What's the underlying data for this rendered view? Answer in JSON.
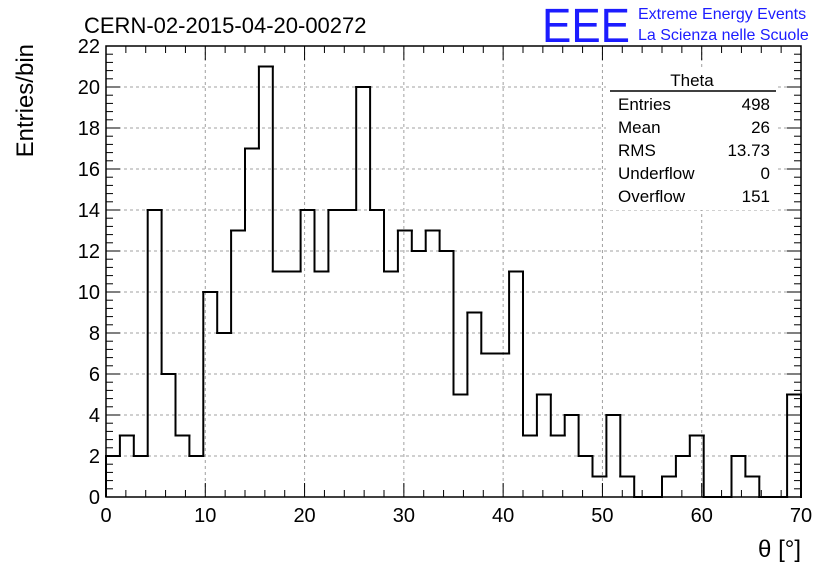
{
  "header": {
    "run_title": "CERN-02-2015-04-20-00272",
    "logo_letters": "EEE",
    "logo_line1": "Extreme Energy Events",
    "logo_line2": "La Scienza nelle Scuole"
  },
  "colors": {
    "logo": "#1c1cff",
    "histogram_line": "#000000",
    "grid": "#a0a0a0"
  },
  "stats_box": {
    "title": "Theta",
    "rows": [
      {
        "label": "Entries",
        "value": "498"
      },
      {
        "label": "Mean",
        "value": "26"
      },
      {
        "label": "RMS",
        "value": "13.73"
      },
      {
        "label": "Underflow",
        "value": "0"
      },
      {
        "label": "Overflow",
        "value": "151"
      }
    ]
  },
  "chart_data": {
    "type": "histogram",
    "title": "CERN-02-2015-04-20-00272",
    "xlabel": "θ [°]",
    "ylabel": "Entries/bin",
    "xlim": [
      0,
      70
    ],
    "ylim": [
      0,
      22
    ],
    "bin_width": 1.4,
    "x_ticks": [
      0,
      10,
      20,
      30,
      40,
      50,
      60,
      70
    ],
    "y_ticks": [
      0,
      2,
      4,
      6,
      8,
      10,
      12,
      14,
      16,
      18,
      20,
      22
    ],
    "grid": true,
    "legend": "none",
    "values": [
      2,
      3,
      2,
      14,
      6,
      3,
      2,
      10,
      8,
      13,
      17,
      21,
      11,
      11,
      14,
      11,
      14,
      14,
      20,
      14,
      11,
      13,
      12,
      13,
      12,
      5,
      9,
      7,
      7,
      11,
      3,
      5,
      3,
      4,
      2,
      1,
      4,
      1,
      0,
      0,
      1,
      2,
      3,
      0,
      0,
      2,
      1,
      0,
      0,
      5
    ]
  }
}
